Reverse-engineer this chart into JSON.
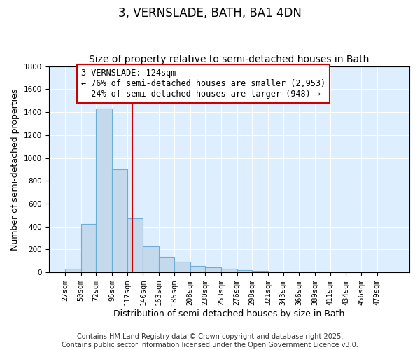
{
  "title": "3, VERNSLADE, BATH, BA1 4DN",
  "subtitle": "Size of property relative to semi-detached houses in Bath",
  "xlabel": "Distribution of semi-detached houses by size in Bath",
  "ylabel": "Number of semi-detached properties",
  "categories": [
    "27sqm",
    "50sqm",
    "72sqm",
    "95sqm",
    "117sqm",
    "140sqm",
    "163sqm",
    "185sqm",
    "208sqm",
    "230sqm",
    "253sqm",
    "276sqm",
    "298sqm",
    "321sqm",
    "343sqm",
    "366sqm",
    "389sqm",
    "411sqm",
    "434sqm",
    "456sqm",
    "479sqm"
  ],
  "bin_edges": [
    27,
    50,
    72,
    95,
    117,
    140,
    163,
    185,
    208,
    230,
    253,
    276,
    298,
    321,
    343,
    366,
    389,
    411,
    434,
    456,
    479,
    502
  ],
  "values": [
    30,
    420,
    1430,
    900,
    470,
    225,
    135,
    90,
    55,
    45,
    30,
    20,
    15,
    10,
    8,
    5,
    5,
    3,
    3,
    3,
    3
  ],
  "bar_color": "#c5d9ed",
  "bar_edge_color": "#6baed6",
  "property_size": 124,
  "red_line_color": "#cc0000",
  "annotation_text": "3 VERNSLADE: 124sqm\n← 76% of semi-detached houses are smaller (2,953)\n  24% of semi-detached houses are larger (948) →",
  "annotation_box_color": "#ffffff",
  "annotation_box_edge_color": "#cc0000",
  "ylim": [
    0,
    1800
  ],
  "yticks": [
    0,
    200,
    400,
    600,
    800,
    1000,
    1200,
    1400,
    1600,
    1800
  ],
  "background_color": "#ddeeff",
  "grid_color": "#ffffff",
  "footer_text": "Contains HM Land Registry data © Crown copyright and database right 2025.\nContains public sector information licensed under the Open Government Licence v3.0.",
  "title_fontsize": 12,
  "subtitle_fontsize": 10,
  "xlabel_fontsize": 9,
  "ylabel_fontsize": 9,
  "tick_fontsize": 7.5,
  "annotation_fontsize": 8.5,
  "footer_fontsize": 7
}
